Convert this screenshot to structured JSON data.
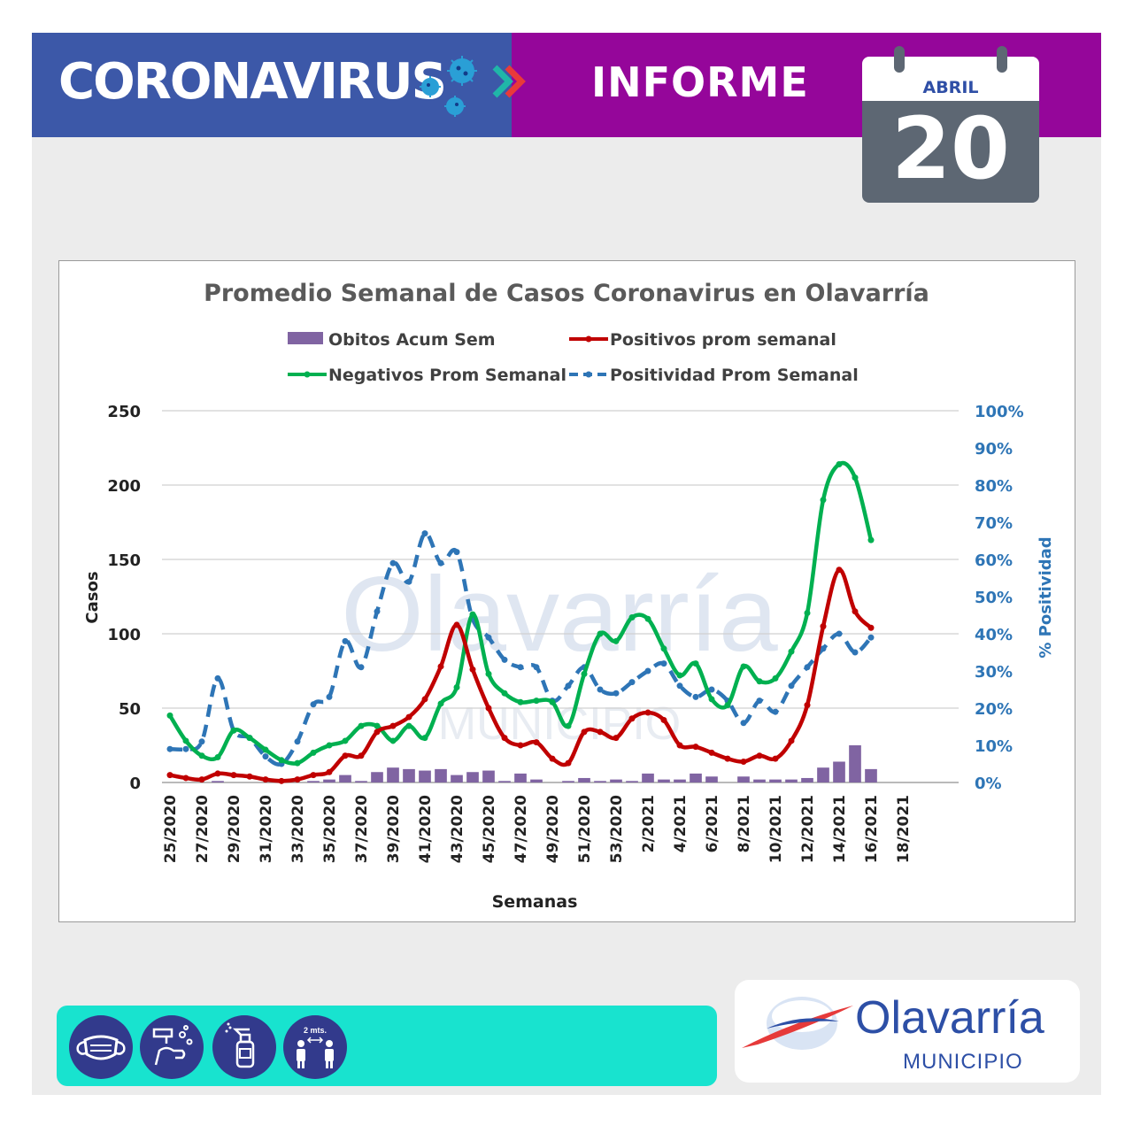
{
  "header": {
    "title_left": "CORONAVIRUS",
    "title_right": "INFORME",
    "left_color": "#3c58a8",
    "right_color": "#95069a"
  },
  "calendar": {
    "month": "ABRIL",
    "day": "20"
  },
  "logo": {
    "name": "Olavarría",
    "subtitle": "MUNICIPIO"
  },
  "watermark": {
    "name": "Olavarría",
    "subtitle": "MUNICIPIO"
  },
  "prevention_icons": [
    "mask-icon",
    "handwash-icon",
    "sanitizer-icon",
    "distance-icon"
  ],
  "distance_label": "2 mts.",
  "chart_data": {
    "type": "line",
    "title": "Promedio Semanal de Casos Coronavirus en Olavarría",
    "xlabel": "Semanas",
    "ylabel": "Casos",
    "y2label": "% Positividad",
    "ylim": [
      0,
      250
    ],
    "y2lim": [
      0,
      100
    ],
    "yticks": [
      "0",
      "50",
      "100",
      "150",
      "200",
      "250"
    ],
    "y2ticks": [
      "0%",
      "10%",
      "20%",
      "30%",
      "40%",
      "50%",
      "60%",
      "70%",
      "80%",
      "90%",
      "100%"
    ],
    "x_tick_labels": [
      "25/2020",
      "27/2020",
      "29/2020",
      "31/2020",
      "33/2020",
      "35/2020",
      "37/2020",
      "39/2020",
      "41/2020",
      "43/2020",
      "45/2020",
      "47/2020",
      "49/2020",
      "51/2020",
      "53/2020",
      "2/2021",
      "4/2021",
      "6/2021",
      "8/2021",
      "10/2021",
      "12/2021",
      "14/2021",
      "16/2021",
      "18/2021"
    ],
    "categories": [
      "25/2020",
      "26/2020",
      "27/2020",
      "28/2020",
      "29/2020",
      "30/2020",
      "31/2020",
      "32/2020",
      "33/2020",
      "34/2020",
      "35/2020",
      "36/2020",
      "37/2020",
      "38/2020",
      "39/2020",
      "40/2020",
      "41/2020",
      "42/2020",
      "43/2020",
      "44/2020",
      "45/2020",
      "46/2020",
      "47/2020",
      "48/2020",
      "49/2020",
      "50/2020",
      "51/2020",
      "52/2020",
      "53/2020",
      "1/2021",
      "2/2021",
      "3/2021",
      "4/2021",
      "5/2021",
      "6/2021",
      "7/2021",
      "8/2021",
      "9/2021",
      "10/2021",
      "11/2021",
      "12/2021",
      "13/2021",
      "14/2021",
      "15/2021",
      "16/2021"
    ],
    "legend": "top",
    "grid": true,
    "series": [
      {
        "name": "Obitos Acum Sem",
        "kind": "bar",
        "axis": "left",
        "color": "#8064a2",
        "values": [
          0,
          0,
          0,
          1,
          0,
          0,
          0,
          0,
          0,
          1,
          2,
          5,
          1,
          7,
          10,
          9,
          8,
          9,
          5,
          7,
          8,
          1,
          6,
          2,
          0,
          1,
          3,
          1,
          2,
          1,
          6,
          2,
          2,
          6,
          4,
          0,
          4,
          2,
          2,
          2,
          3,
          10,
          14,
          25,
          9
        ]
      },
      {
        "name": "Positivos prom semanal",
        "kind": "line",
        "axis": "left",
        "color": "#c00000",
        "values": [
          5,
          3,
          2,
          6,
          5,
          4,
          2,
          1,
          2,
          5,
          7,
          18,
          18,
          34,
          38,
          44,
          56,
          78,
          106,
          76,
          50,
          30,
          25,
          27,
          16,
          13,
          34,
          34,
          30,
          43,
          47,
          42,
          25,
          24,
          20,
          16,
          14,
          18,
          16,
          28,
          52,
          105,
          143,
          115,
          104
        ]
      },
      {
        "name": "Negativos Prom Semanal",
        "kind": "line",
        "axis": "left",
        "color": "#00b050",
        "values": [
          45,
          28,
          18,
          17,
          35,
          30,
          22,
          15,
          13,
          20,
          25,
          28,
          38,
          38,
          28,
          38,
          30,
          53,
          64,
          113,
          73,
          60,
          54,
          55,
          54,
          38,
          73,
          100,
          95,
          111,
          110,
          90,
          72,
          80,
          56,
          52,
          78,
          68,
          70,
          88,
          114,
          190,
          214,
          205,
          163
        ]
      },
      {
        "name": "Positividad Prom Semanal",
        "kind": "line-dashed",
        "axis": "right",
        "color": "#2e75b6",
        "values": [
          9,
          9,
          11,
          28,
          14,
          12,
          7,
          5,
          11,
          21,
          23,
          38,
          31,
          46,
          59,
          54,
          67,
          59,
          62,
          44,
          39,
          33,
          31,
          31,
          22,
          26,
          31,
          25,
          24,
          27,
          30,
          32,
          26,
          23,
          25,
          22,
          16,
          22,
          19,
          26,
          31,
          36,
          40,
          35,
          39
        ]
      }
    ]
  }
}
